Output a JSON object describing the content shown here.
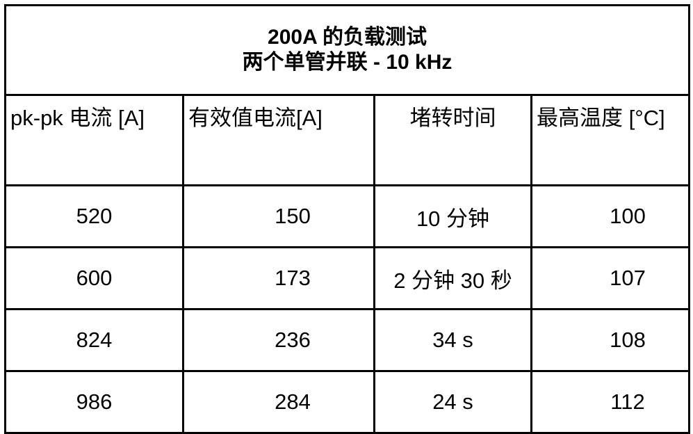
{
  "table": {
    "title": [
      "200A  的负载测试",
      "两个单管并联  - 10 kHz"
    ],
    "header": [
      "pk-pk  电流  [A]",
      "有效值电流[A]",
      "堵转时间",
      "最高温度 [°C]"
    ],
    "rows": [
      [
        520,
        150,
        "10  分钟",
        100
      ],
      [
        600,
        173,
        "2 分钟 30 秒",
        107
      ],
      [
        824,
        236,
        "34 s",
        108
      ],
      [
        986,
        284,
        "24 s",
        112
      ]
    ]
  }
}
